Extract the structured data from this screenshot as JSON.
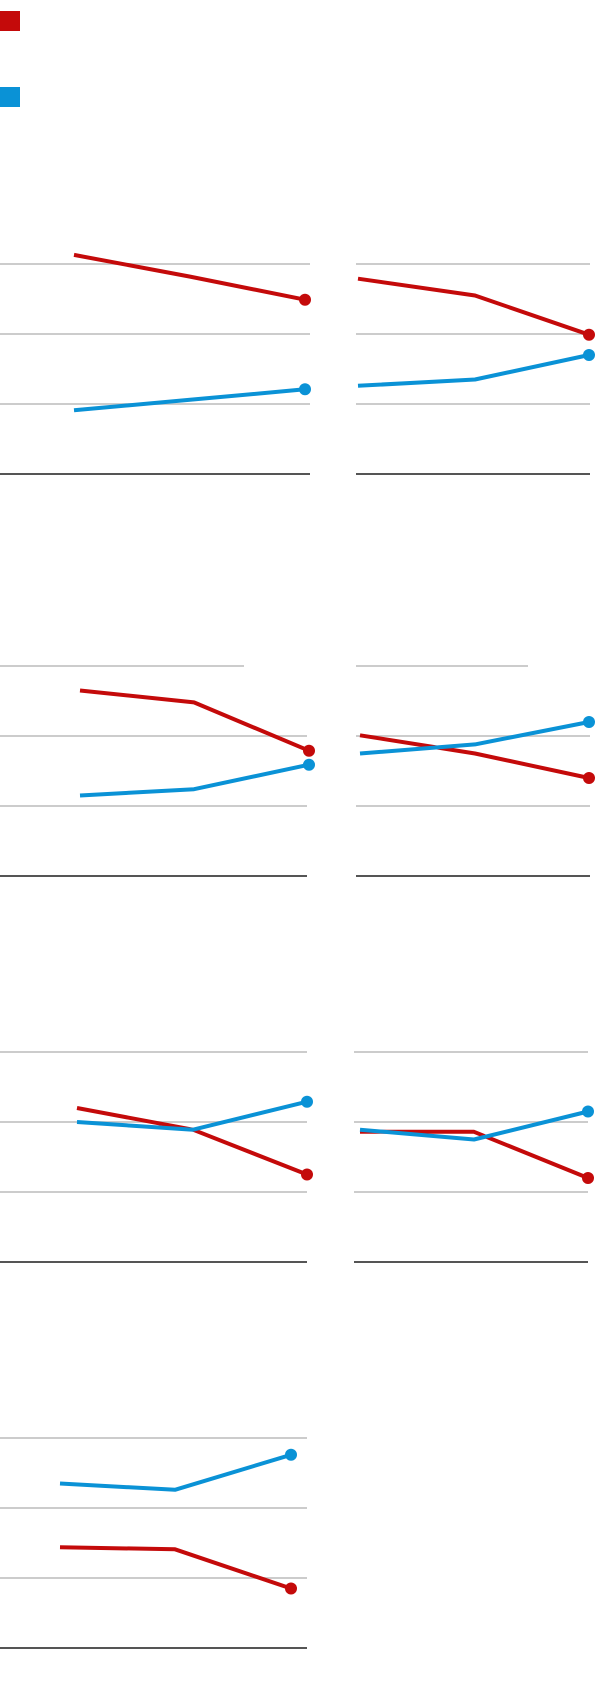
{
  "colors": {
    "red": "#c40a0a",
    "blue": "#0a92d6",
    "gridline": "#cccccc",
    "baseline": "#555555"
  },
  "legend": {
    "items": [
      {
        "color": "#c40a0a",
        "label": ""
      },
      {
        "color": "#0a92d6",
        "label": ""
      }
    ]
  },
  "chart_data": [
    {
      "type": "line",
      "title": "",
      "x": [
        0,
        1,
        2
      ],
      "ylim": [
        0,
        3
      ],
      "grid": true,
      "series": [
        {
          "color": "#c40a0a",
          "values": [
            3.13,
            2.82,
            2.49
          ]
        },
        {
          "color": "#0a92d6",
          "values": [
            0.91,
            1.06,
            1.21
          ]
        }
      ]
    },
    {
      "type": "line",
      "title": "",
      "x": [
        0,
        1,
        2
      ],
      "ylim": [
        0,
        3
      ],
      "grid": true,
      "series": [
        {
          "color": "#c40a0a",
          "values": [
            2.79,
            2.55,
            1.99
          ]
        },
        {
          "color": "#0a92d6",
          "values": [
            1.26,
            1.35,
            1.7
          ]
        }
      ]
    },
    {
      "type": "line",
      "title": "",
      "x": [
        0,
        1,
        2
      ],
      "ylim": [
        0,
        3
      ],
      "grid": true,
      "series": [
        {
          "color": "#c40a0a",
          "values": [
            2.65,
            2.48,
            1.79
          ]
        },
        {
          "color": "#0a92d6",
          "values": [
            1.15,
            1.24,
            1.59
          ]
        }
      ]
    },
    {
      "type": "line",
      "title": "",
      "x": [
        0,
        1,
        2
      ],
      "ylim": [
        0,
        3
      ],
      "grid": true,
      "series": [
        {
          "color": "#c40a0a",
          "values": [
            2.01,
            1.75,
            1.4
          ]
        },
        {
          "color": "#0a92d6",
          "values": [
            1.75,
            1.88,
            2.2
          ]
        }
      ]
    },
    {
      "type": "line",
      "title": "",
      "x": [
        0,
        1,
        2
      ],
      "ylim": [
        0,
        3
      ],
      "grid": true,
      "series": [
        {
          "color": "#c40a0a",
          "values": [
            2.2,
            1.89,
            1.25
          ]
        },
        {
          "color": "#0a92d6",
          "values": [
            2.0,
            1.89,
            2.29
          ]
        }
      ]
    },
    {
      "type": "line",
      "title": "",
      "x": [
        0,
        1,
        2
      ],
      "ylim": [
        0,
        3
      ],
      "grid": true,
      "series": [
        {
          "color": "#c40a0a",
          "values": [
            1.86,
            1.86,
            1.2
          ]
        },
        {
          "color": "#0a92d6",
          "values": [
            1.89,
            1.75,
            2.15
          ]
        }
      ]
    },
    {
      "type": "line",
      "title": "",
      "x": [
        0,
        1,
        2
      ],
      "ylim": [
        0,
        3
      ],
      "grid": true,
      "series": [
        {
          "color": "#c40a0a",
          "values": [
            1.44,
            1.41,
            0.85
          ]
        },
        {
          "color": "#0a92d6",
          "values": [
            2.35,
            2.26,
            2.76
          ]
        }
      ]
    }
  ]
}
